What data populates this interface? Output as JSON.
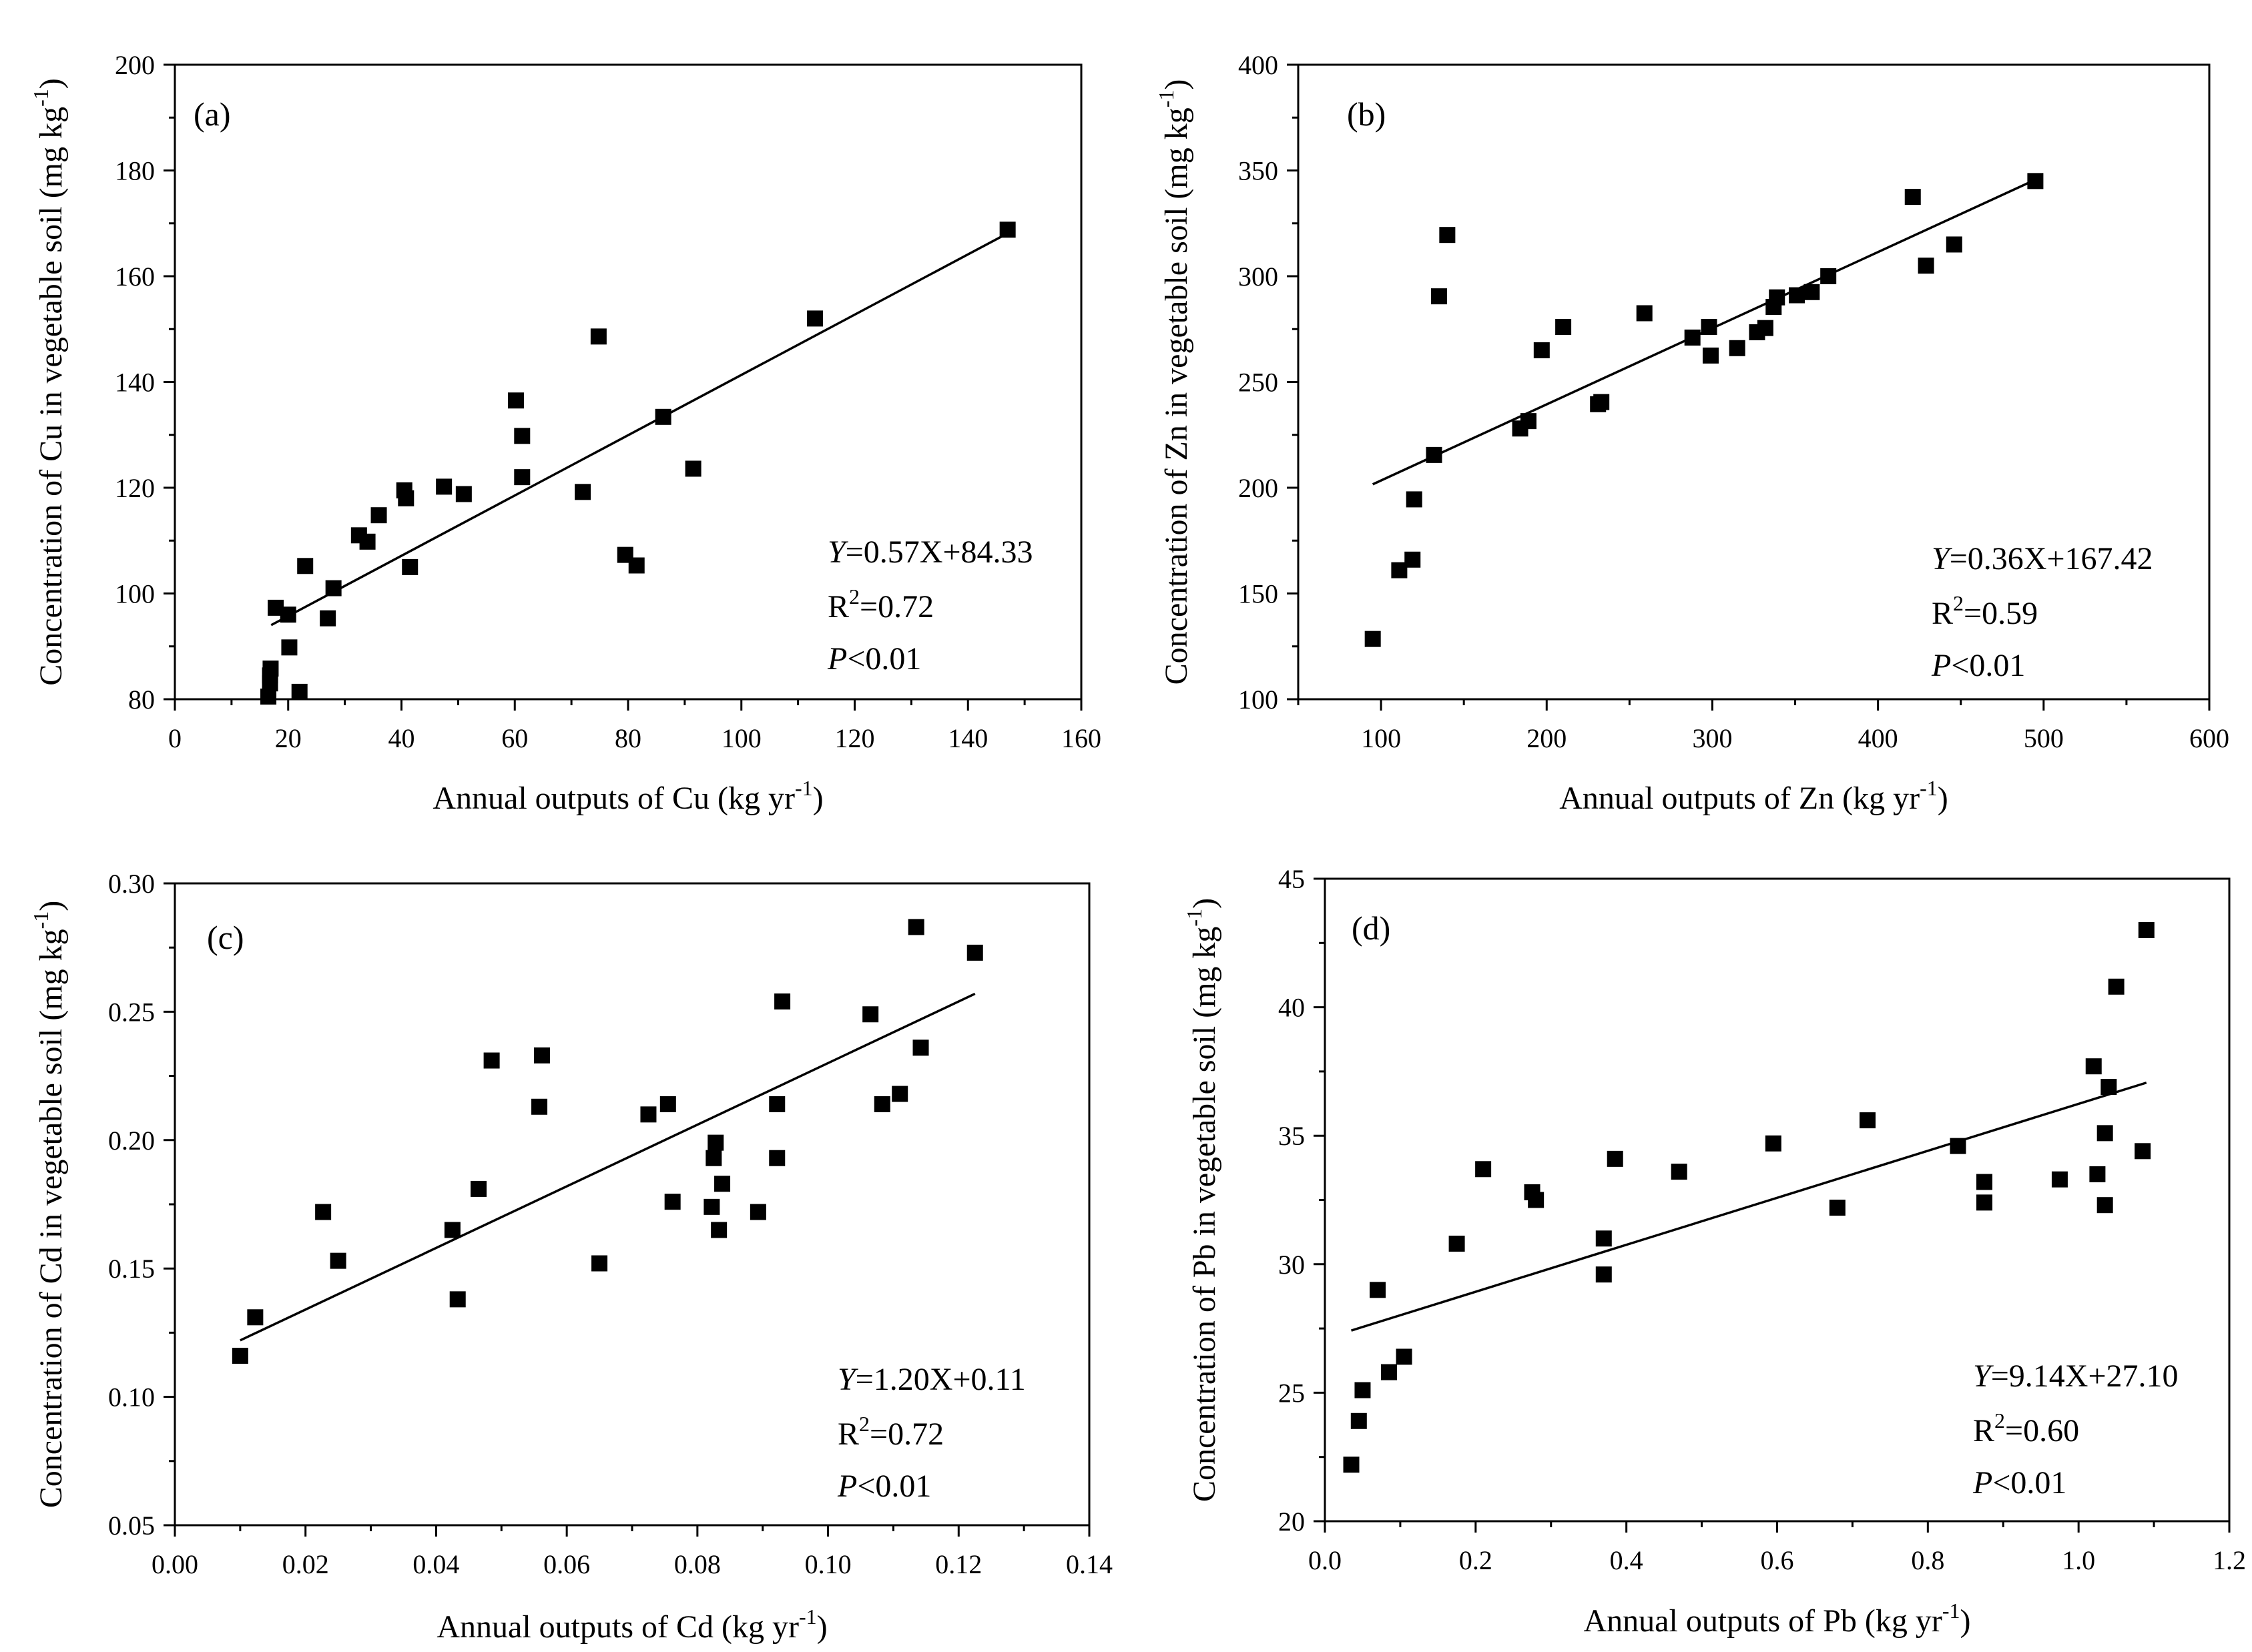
{
  "chart_data": [
    {
      "type": "scatter",
      "panel_label": "(a)",
      "xlabel": {
        "base": "Annual outputs of Cu (kg yr",
        "sup": "-1",
        "tail": ")"
      },
      "ylabel": {
        "base": "Concentration of Cu in vegetable soil (mg kg",
        "sup": "-1",
        "tail": ")"
      },
      "xlim": [
        0,
        160
      ],
      "ylim": [
        80,
        200
      ],
      "xticks": [
        0,
        20,
        40,
        60,
        80,
        100,
        120,
        140,
        160
      ],
      "xtick_labels": [
        "0",
        "20",
        "40",
        "60",
        "80",
        "100",
        "120",
        "140",
        "160"
      ],
      "yticks": [
        80,
        100,
        120,
        140,
        160,
        180,
        200
      ],
      "ytick_labels": [
        "80",
        "100",
        "120",
        "140",
        "160",
        "180",
        "200"
      ],
      "x_minor_step": 10,
      "y_minor_step": 10,
      "annotation": {
        "eq_prefix": "Y",
        "eq_body": "=0.57X+84.33",
        "r2_pre": "R",
        "r2_sup": "2",
        "r2_post": "=0.72",
        "p_prefix": "P",
        "p_body": "<0.01"
      },
      "fit": {
        "slope": 0.57,
        "intercept": 84.33,
        "x_range": [
          17,
          147
        ]
      },
      "points": [
        [
          16.5,
          80.5
        ],
        [
          16.8,
          83
        ],
        [
          16.8,
          84.5
        ],
        [
          16.9,
          85.8
        ],
        [
          17.8,
          97.3
        ],
        [
          20,
          96
        ],
        [
          20.2,
          89.8
        ],
        [
          22,
          81.4
        ],
        [
          23,
          105.2
        ],
        [
          27,
          95.3
        ],
        [
          28,
          101
        ],
        [
          32.5,
          111
        ],
        [
          34,
          109.8
        ],
        [
          36,
          114.8
        ],
        [
          40.5,
          119.5
        ],
        [
          40.8,
          118
        ],
        [
          41.5,
          105
        ],
        [
          47.5,
          120.2
        ],
        [
          51,
          118.8
        ],
        [
          60.2,
          136.5
        ],
        [
          61.3,
          129.8
        ],
        [
          61.3,
          122
        ],
        [
          72,
          119.2
        ],
        [
          74.8,
          148.6
        ],
        [
          79.5,
          107.3
        ],
        [
          81.5,
          105.3
        ],
        [
          86.2,
          133.4
        ],
        [
          91.5,
          123.6
        ],
        [
          113,
          152
        ],
        [
          147,
          168.8
        ]
      ]
    },
    {
      "type": "scatter",
      "panel_label": "(b)",
      "xlabel": {
        "base": "Annual outputs of Zn (kg yr",
        "sup": "-1",
        "tail": ")"
      },
      "ylabel": {
        "base": "Concentration of Zn in vegetable soil (mg kg",
        "sup": "-1",
        "tail": ")"
      },
      "xlim": [
        50,
        600
      ],
      "ylim": [
        100,
        400
      ],
      "xticks": [
        100,
        200,
        300,
        400,
        500,
        600
      ],
      "xtick_labels": [
        "100",
        "200",
        "300",
        "400",
        "500",
        "600"
      ],
      "yticks": [
        100,
        150,
        200,
        250,
        300,
        350,
        400
      ],
      "ytick_labels": [
        "100",
        "150",
        "200",
        "250",
        "300",
        "350",
        "400"
      ],
      "x_minor_step": 50,
      "y_minor_step": 25,
      "annotation": {
        "eq_prefix": "Y",
        "eq_body": "=0.36X+167.42",
        "r2_pre": "R",
        "r2_sup": "2",
        "r2_post": "=0.59",
        "p_prefix": "P",
        "p_body": "<0.01"
      },
      "fit": {
        "slope": 0.36,
        "intercept": 167.42,
        "x_range": [
          95,
          495
        ]
      },
      "points": [
        [
          95,
          128.5
        ],
        [
          111,
          161
        ],
        [
          119,
          166
        ],
        [
          120,
          194.5
        ],
        [
          132,
          215.5
        ],
        [
          135,
          290.5
        ],
        [
          140,
          319.5
        ],
        [
          184,
          228
        ],
        [
          189,
          231.5
        ],
        [
          197,
          265
        ],
        [
          210,
          276
        ],
        [
          231,
          239.5
        ],
        [
          233,
          240.5
        ],
        [
          259,
          282.5
        ],
        [
          288,
          271
        ],
        [
          298,
          276
        ],
        [
          299,
          262.5
        ],
        [
          315,
          266
        ],
        [
          327,
          273.5
        ],
        [
          332,
          275.5
        ],
        [
          337,
          285.5
        ],
        [
          339,
          290
        ],
        [
          351,
          291
        ],
        [
          360,
          292.5
        ],
        [
          370,
          300
        ],
        [
          421,
          337.5
        ],
        [
          429,
          305
        ],
        [
          446,
          315
        ],
        [
          495,
          345
        ]
      ]
    },
    {
      "type": "scatter",
      "panel_label": "(c)",
      "xlabel": {
        "base": "Annual outputs of Cd (kg yr",
        "sup": "-1",
        "tail": ")"
      },
      "ylabel": {
        "base": "Concentration of Cd in vegetable soil (mg kg",
        "sup": "-1",
        "tail": ")"
      },
      "xlim": [
        0,
        0.14
      ],
      "ylim": [
        0.05,
        0.3
      ],
      "xticks": [
        0,
        0.02,
        0.04,
        0.06,
        0.08,
        0.1,
        0.12,
        0.14
      ],
      "xtick_labels": [
        "0.00",
        "0.02",
        "0.04",
        "0.06",
        "0.08",
        "0.10",
        "0.12",
        "0.14"
      ],
      "yticks": [
        0.05,
        0.1,
        0.15,
        0.2,
        0.25,
        0.3
      ],
      "ytick_labels": [
        "0.05",
        "0.10",
        "0.15",
        "0.20",
        "0.25",
        "0.30"
      ],
      "x_minor_step": 0.01,
      "y_minor_step": 0.025,
      "annotation": {
        "eq_prefix": "Y",
        "eq_body": "=1.20X+0.11",
        "r2_pre": "R",
        "r2_sup": "2",
        "r2_post": "=0.72",
        "p_prefix": "P",
        "p_body": "<0.01"
      },
      "fit": {
        "slope": 1.2,
        "intercept": 0.11,
        "x_range": [
          0.01,
          0.1225
        ]
      },
      "points": [
        [
          0.01,
          0.116
        ],
        [
          0.0123,
          0.131
        ],
        [
          0.0227,
          0.172
        ],
        [
          0.025,
          0.153
        ],
        [
          0.0425,
          0.165
        ],
        [
          0.0433,
          0.138
        ],
        [
          0.0465,
          0.181
        ],
        [
          0.0485,
          0.231
        ],
        [
          0.0558,
          0.213
        ],
        [
          0.0562,
          0.233
        ],
        [
          0.065,
          0.152
        ],
        [
          0.0725,
          0.21
        ],
        [
          0.0755,
          0.214
        ],
        [
          0.0762,
          0.176
        ],
        [
          0.0822,
          0.174
        ],
        [
          0.0825,
          0.193
        ],
        [
          0.0828,
          0.199
        ],
        [
          0.0833,
          0.165
        ],
        [
          0.0838,
          0.183
        ],
        [
          0.0893,
          0.172
        ],
        [
          0.0922,
          0.214
        ],
        [
          0.0922,
          0.193
        ],
        [
          0.093,
          0.254
        ],
        [
          0.1065,
          0.249
        ],
        [
          0.1083,
          0.214
        ],
        [
          0.111,
          0.218
        ],
        [
          0.1135,
          0.283
        ],
        [
          0.1142,
          0.236
        ],
        [
          0.1225,
          0.273
        ]
      ]
    },
    {
      "type": "scatter",
      "panel_label": "(d)",
      "xlabel": {
        "base": "Annual outputs of Pb (kg yr",
        "sup": "-1",
        "tail": ")"
      },
      "ylabel": {
        "base": "Concentration of Pb in vegetable soil (mg kg",
        "sup": "-1",
        "tail": ")"
      },
      "xlim": [
        0,
        1.2
      ],
      "ylim": [
        20,
        45
      ],
      "xticks": [
        0,
        0.2,
        0.4,
        0.6,
        0.8,
        1.0,
        1.2
      ],
      "xtick_labels": [
        "0.0",
        "0.2",
        "0.4",
        "0.6",
        "0.8",
        "1.0",
        "1.2"
      ],
      "yticks": [
        20,
        25,
        30,
        35,
        40,
        45
      ],
      "ytick_labels": [
        "20",
        "25",
        "30",
        "35",
        "40",
        "45"
      ],
      "x_minor_step": 0.1,
      "y_minor_step": 2.5,
      "annotation": {
        "eq_prefix": "Y",
        "eq_body": "=9.14X+27.10",
        "r2_pre": "R",
        "r2_sup": "2",
        "r2_post": "=0.60",
        "p_prefix": "P",
        "p_body": "<0.01"
      },
      "fit": {
        "slope": 9.14,
        "intercept": 27.1,
        "x_range": [
          0.035,
          1.09
        ]
      },
      "points": [
        [
          0.035,
          22.2
        ],
        [
          0.045,
          23.9
        ],
        [
          0.05,
          25.1
        ],
        [
          0.07,
          29
        ],
        [
          0.085,
          25.8
        ],
        [
          0.105,
          26.4
        ],
        [
          0.175,
          30.8
        ],
        [
          0.21,
          33.7
        ],
        [
          0.275,
          32.8
        ],
        [
          0.28,
          32.5
        ],
        [
          0.37,
          31
        ],
        [
          0.37,
          29.6
        ],
        [
          0.385,
          34.1
        ],
        [
          0.47,
          33.6
        ],
        [
          0.595,
          34.7
        ],
        [
          0.68,
          32.2
        ],
        [
          0.72,
          35.6
        ],
        [
          0.84,
          34.6
        ],
        [
          0.875,
          33.2
        ],
        [
          0.875,
          32.4
        ],
        [
          0.975,
          33.3
        ],
        [
          1.02,
          37.7
        ],
        [
          1.025,
          33.5
        ],
        [
          1.035,
          32.3
        ],
        [
          1.035,
          35.1
        ],
        [
          1.04,
          36.9
        ],
        [
          1.05,
          40.8
        ],
        [
          1.085,
          34.4
        ],
        [
          1.09,
          43
        ]
      ]
    }
  ]
}
